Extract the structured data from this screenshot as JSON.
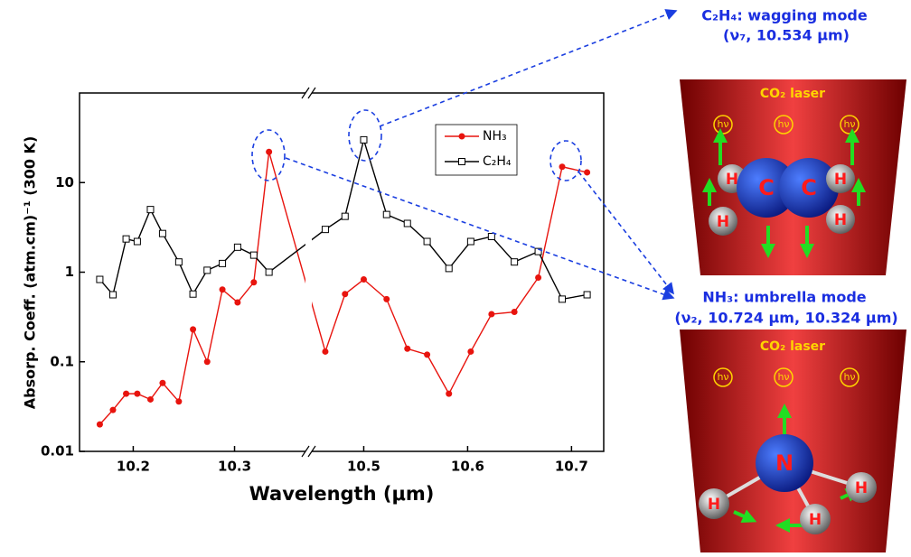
{
  "chart_data": {
    "type": "line",
    "y_label": "Absorp. Coeff. (atm.cm)⁻¹ (300 K)",
    "x_label": "Wavelength (μm)",
    "log_y": true,
    "xlim": [
      10.147,
      10.731
    ],
    "x_break": [
      10.37,
      10.45
    ],
    "ylim": [
      0.01,
      100
    ],
    "xticks": [
      10.2,
      10.3,
      10.5,
      10.6,
      10.7
    ],
    "yticks": [
      0.01,
      0.1,
      1,
      10
    ],
    "x": [
      10.167,
      10.18,
      10.193,
      10.204,
      10.217,
      10.229,
      10.245,
      10.259,
      10.273,
      10.288,
      10.303,
      10.319,
      10.334,
      10.463,
      10.482,
      10.5,
      10.522,
      10.542,
      10.561,
      10.582,
      10.603,
      10.623,
      10.645,
      10.668,
      10.691,
      10.715
    ],
    "series": [
      {
        "name": "NH₃",
        "color": "#e8140e",
        "marker": "circle",
        "values": [
          0.02,
          0.029,
          0.044,
          0.044,
          0.038,
          0.058,
          0.036,
          0.23,
          0.1,
          0.64,
          0.46,
          0.77,
          22,
          0.13,
          0.57,
          0.83,
          0.5,
          0.14,
          0.12,
          0.044,
          0.13,
          0.34,
          0.36,
          0.87,
          15,
          13
        ]
      },
      {
        "name": "C₂H₄",
        "color": "#000000",
        "marker": "square",
        "values": [
          0.83,
          0.56,
          2.35,
          2.2,
          5.0,
          2.7,
          1.3,
          0.57,
          1.05,
          1.25,
          1.9,
          1.55,
          1.0,
          3.0,
          4.2,
          30,
          4.4,
          3.5,
          2.2,
          1.1,
          2.2,
          2.5,
          1.3,
          1.7,
          0.5,
          0.56
        ]
      }
    ]
  },
  "diagrams": [
    {
      "title": "C₂H₄: wagging mode",
      "subtitle": "(ν₇, 10.534 μm)",
      "laser": "CO₂ laser",
      "photons": [
        "hν",
        "hν",
        "hν"
      ],
      "atoms": [
        "H",
        "H",
        "C",
        "C",
        "H",
        "H"
      ]
    },
    {
      "title": "NH₃: umbrella mode",
      "subtitle": "(ν₂, 10.724 μm, 10.324 μm)",
      "laser": "CO₂ laser",
      "photons": [
        "hν",
        "hν",
        "hν"
      ],
      "atoms": [
        "N",
        "H",
        "H",
        "H"
      ]
    }
  ]
}
